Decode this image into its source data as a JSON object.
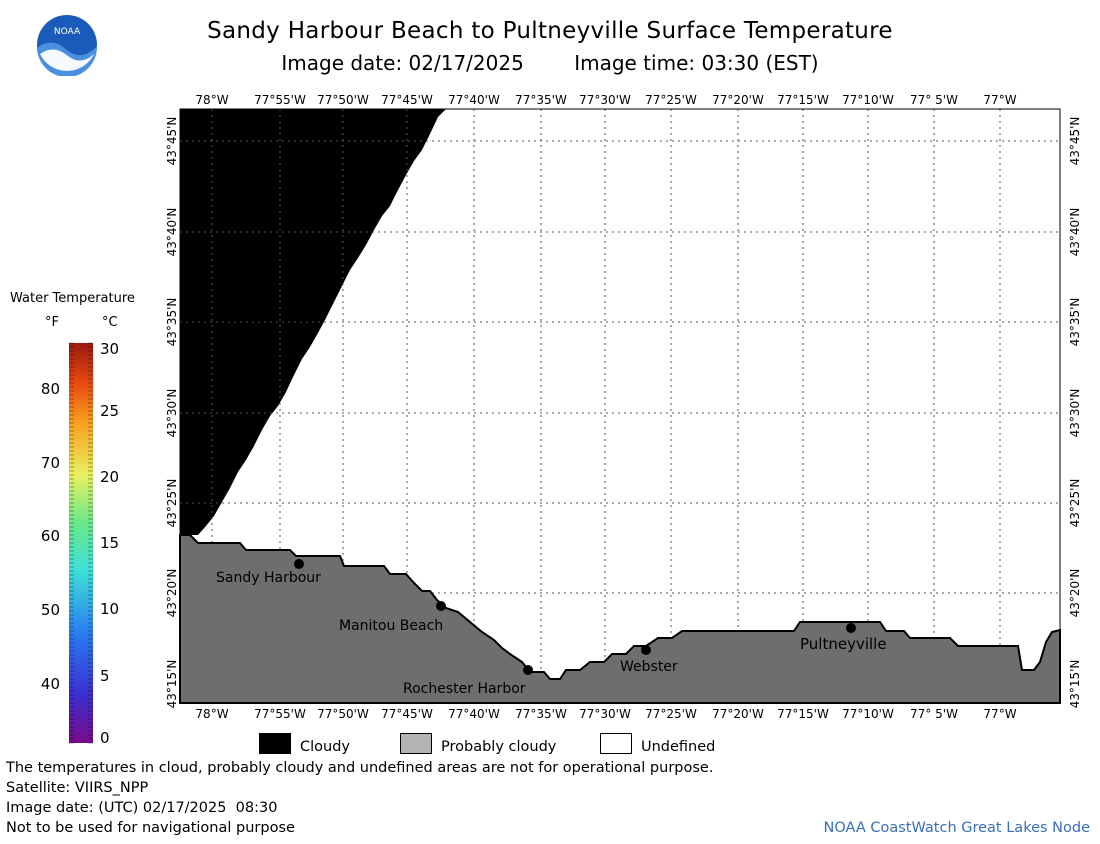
{
  "header": {
    "title": "Sandy Harbour Beach to Pultneyville Surface Temperature",
    "image_date": "Image date: 02/17/2025",
    "image_time": "Image time: 03:30 (EST)",
    "logo_text": "NOAA"
  },
  "map": {
    "lon_ticks": [
      "78°W",
      "77°55'W",
      "77°50'W",
      "77°45'W",
      "77°40'W",
      "77°35'W",
      "77°30'W",
      "77°25'W",
      "77°20'W",
      "77°15'W",
      "77°10'W",
      "77° 5'W",
      "77°W"
    ],
    "lat_ticks": [
      "43°15'N",
      "43°20'N",
      "43°25'N",
      "43°30'N",
      "43°35'N",
      "43°40'N",
      "43°45'N"
    ],
    "places": [
      {
        "name": "Sandy Harbour"
      },
      {
        "name": "Manitou Beach"
      },
      {
        "name": "Rochester Harbor"
      },
      {
        "name": "Webster"
      },
      {
        "name": "Pultneyville"
      }
    ],
    "colors": {
      "cloudy": "#000000",
      "probably_cloudy": "#6e6e6e",
      "undefined": "#ffffff",
      "grid": "#555555"
    }
  },
  "scale": {
    "title": "Water Temperature",
    "unit_f": "°F",
    "unit_c": "°C",
    "f_labels": [
      "80",
      "70",
      "60",
      "50",
      "40"
    ],
    "c_labels": [
      "30",
      "25",
      "20",
      "15",
      "10",
      "5",
      "0"
    ]
  },
  "legend": {
    "cloudy": "Cloudy",
    "probably_cloudy": "Probably cloudy",
    "undefined": "Undefined"
  },
  "footer": {
    "note": "The temperatures in cloud, probably cloudy and undefined areas are not for operational purpose.",
    "satellite": "Satellite: VIIRS_NPP",
    "utc_date": "Image date: (UTC) 02/17/2025  08:30",
    "nav_warning": "Not to be used for navigational purpose",
    "credit": "NOAA CoastWatch Great Lakes Node"
  }
}
